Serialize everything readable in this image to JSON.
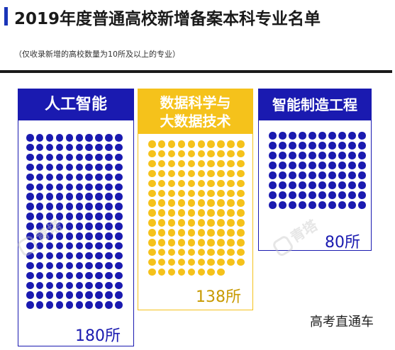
{
  "title": "2019年度普通高校新增备案本科专业名单",
  "subtitle": "（仅收录新增的高校数量为10所及以上的专业）",
  "footer": "高考直通车",
  "watermark": "青塔",
  "colors": {
    "blue": "#1a1ab0",
    "yellow": "#f5c21b",
    "dark_blue": "#1a35b8"
  },
  "chart_data": {
    "type": "pictograph",
    "categories": [
      "人工智能",
      "数据科学与大数据技术",
      "智能制造工程"
    ],
    "values": [
      180,
      138,
      80
    ],
    "labels": [
      "180所",
      "138所",
      "80所"
    ],
    "panels": [
      {
        "header": "人工智能",
        "header_lines": [
          "人工智能"
        ],
        "label": "180所",
        "value": 180,
        "color": "#1a1ab0"
      },
      {
        "header": "数据科学与大数据技术",
        "header_lines": [
          "数据科学与",
          "大数据技术"
        ],
        "label": "138所",
        "value": 138,
        "color": "#f5c21b"
      },
      {
        "header": "智能制造工程",
        "header_lines": [
          "智能制造工程"
        ],
        "label": "80所",
        "value": 80,
        "color": "#1a1ab0"
      }
    ]
  }
}
